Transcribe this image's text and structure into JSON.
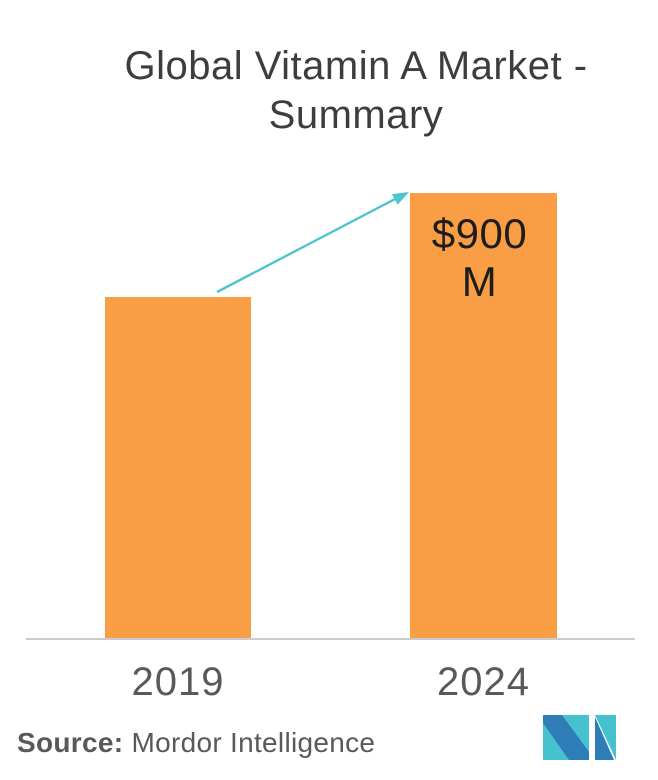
{
  "title": {
    "line1": "Global Vitamin A Market -",
    "line2": "Summary"
  },
  "chart_data": {
    "type": "bar",
    "title": "Global Vitamin A Market - Summary",
    "categories": [
      "2019",
      "2024"
    ],
    "values": [
      690,
      900
    ],
    "data_labels": [
      "",
      "$900 M"
    ],
    "xlabel": "",
    "ylabel": "",
    "ylim": [
      0,
      900
    ],
    "grid": false,
    "legend": "none",
    "bar_color": "#FA9E45",
    "axis_line_color": "#cccccc",
    "annotations": [
      {
        "type": "growth-arrow",
        "from": "2019",
        "to": "2024",
        "color": "#4EC5CC"
      }
    ]
  },
  "footer": {
    "source_label": "Source:",
    "source_text": "Mordor Intelligence"
  },
  "logo": {
    "name": "mordor-intelligence-logo",
    "teal": "#45C2CD",
    "blue": "#2E7CB8"
  },
  "colors": {
    "background": "#ffffff",
    "title_text": "#3d3d3d",
    "tick_text": "#595959",
    "data_label_text": "#1d1d1d",
    "source_text": "#58595b"
  }
}
